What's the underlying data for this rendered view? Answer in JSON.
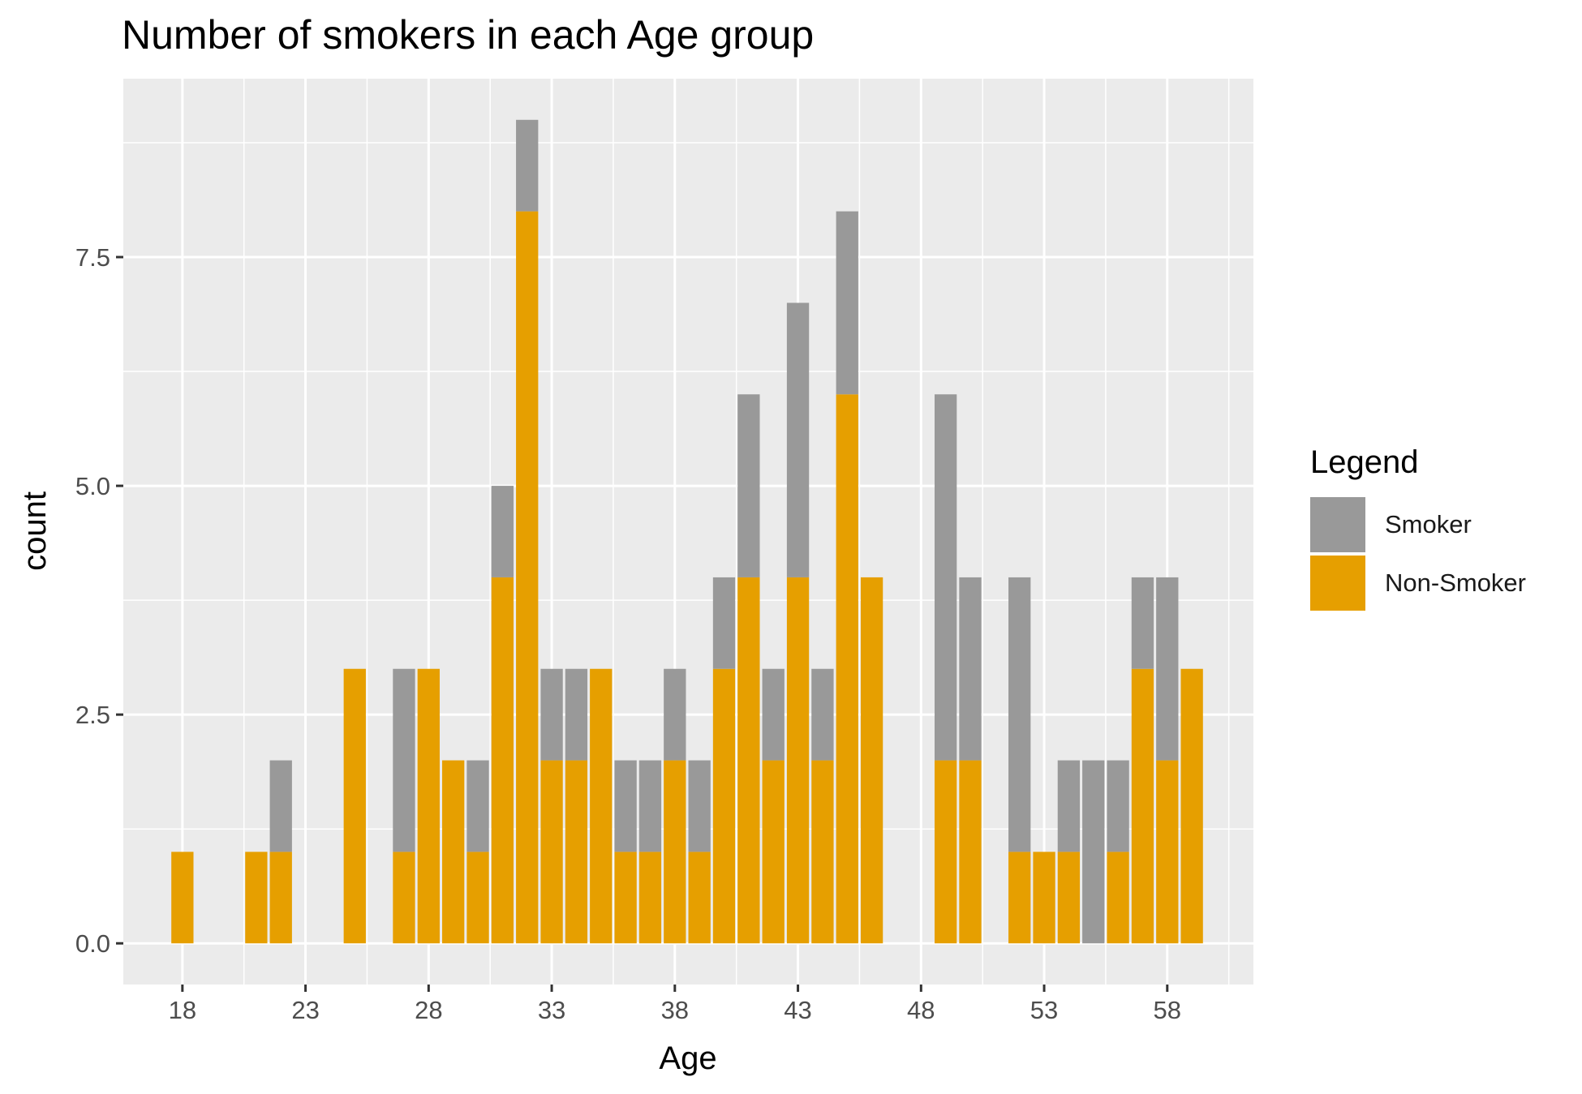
{
  "chart_data": {
    "type": "bar",
    "stacked": true,
    "title": "Number of smokers in each Age group",
    "xlabel": "Age",
    "ylabel": "count",
    "xlim": [
      15.6,
      61.5
    ],
    "ylim": [
      -0.45,
      9.45
    ],
    "x_ticks": [
      18,
      23,
      28,
      33,
      38,
      43,
      48,
      53,
      58
    ],
    "y_ticks": [
      0.0,
      2.5,
      5.0,
      7.5
    ],
    "y_tick_labels": [
      "0.0",
      "2.5",
      "5.0",
      "7.5"
    ],
    "x": [
      18,
      21,
      22,
      25,
      27,
      28,
      29,
      30,
      31,
      32,
      33,
      34,
      35,
      36,
      37,
      38,
      39,
      40,
      41,
      42,
      43,
      44,
      45,
      46,
      49,
      50,
      52,
      53,
      54,
      55,
      56,
      57,
      58,
      59
    ],
    "series": [
      {
        "name": "Non-Smoker",
        "color": "#E69F00",
        "values": [
          1,
          1,
          1,
          3,
          1,
          3,
          2,
          1,
          4,
          8,
          2,
          2,
          3,
          1,
          1,
          2,
          1,
          3,
          4,
          2,
          4,
          2,
          6,
          4,
          2,
          2,
          1,
          1,
          1,
          0,
          1,
          3,
          2,
          3
        ]
      },
      {
        "name": "Smoker",
        "color": "#999999",
        "values": [
          0,
          0,
          1,
          0,
          2,
          0,
          0,
          1,
          1,
          1,
          1,
          1,
          0,
          1,
          1,
          1,
          1,
          1,
          2,
          1,
          3,
          1,
          2,
          0,
          4,
          2,
          3,
          0,
          1,
          2,
          1,
          1,
          2,
          0
        ]
      }
    ],
    "legend": {
      "title": "Legend",
      "position": "right",
      "order": [
        "Smoker",
        "Non-Smoker"
      ]
    },
    "grid": true,
    "panel_background": "#EBEBEB"
  }
}
